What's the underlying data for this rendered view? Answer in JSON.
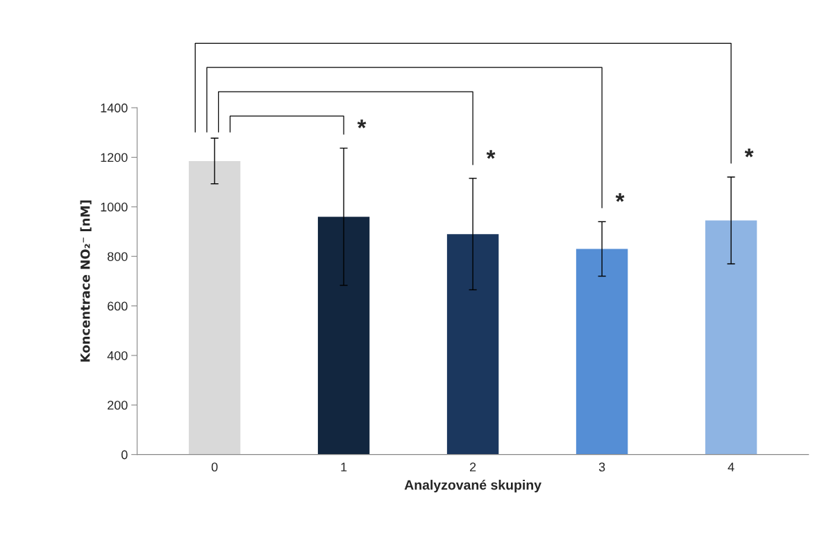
{
  "chart_data": {
    "type": "bar",
    "xlabel": "Analyzované skupiny",
    "ylabel": "Koncentrace NO₂⁻ [nM]",
    "categories": [
      "0",
      "1",
      "2",
      "3",
      "4"
    ],
    "values": [
      1185,
      960,
      890,
      830,
      945
    ],
    "errors": [
      92,
      277,
      225,
      110,
      175
    ],
    "colors": [
      "#d9d9d9",
      "#12263f",
      "#1b375e",
      "#558ed5",
      "#8eb4e3"
    ],
    "ylim": [
      0,
      1400
    ],
    "yticks": [
      0,
      200,
      400,
      600,
      800,
      1000,
      1200,
      1400
    ],
    "grid": false,
    "annotations": [
      {
        "text": "*",
        "x": "1",
        "y": 1237
      },
      {
        "text": "*",
        "x": "2",
        "y": 1114
      },
      {
        "text": "*",
        "x": "3",
        "y": 940
      },
      {
        "text": "*",
        "x": "4",
        "y": 1120
      }
    ]
  }
}
